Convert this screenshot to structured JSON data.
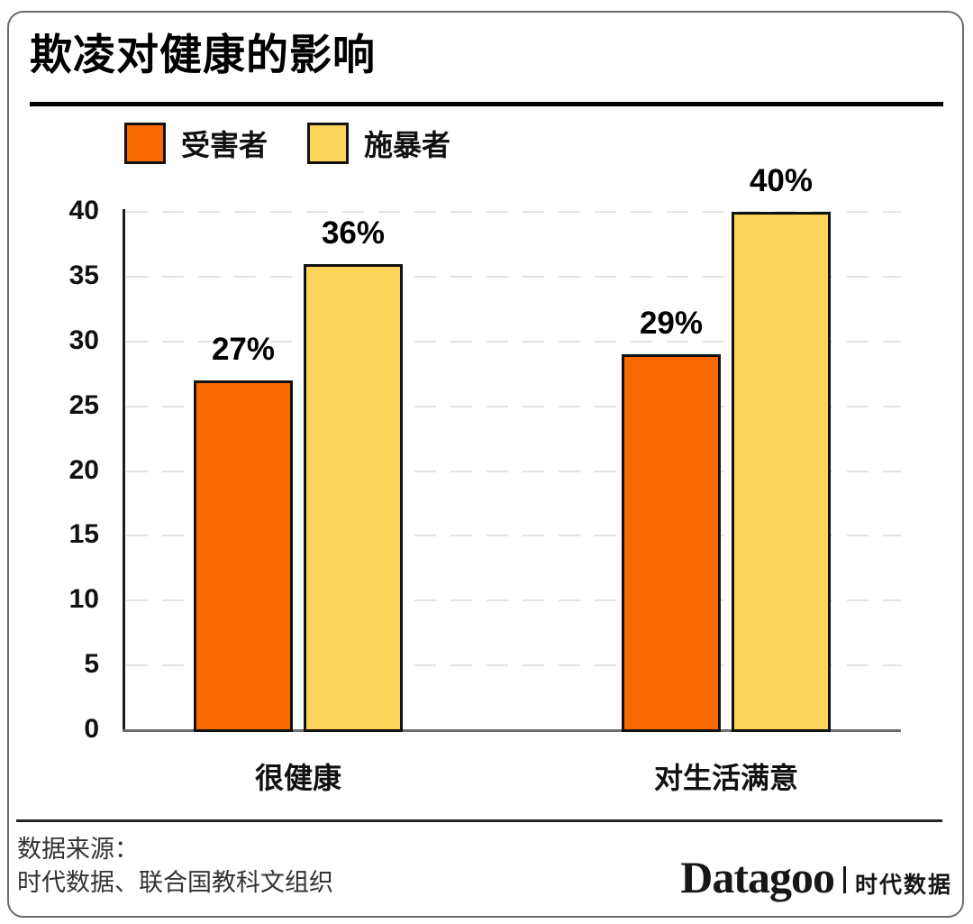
{
  "chart_data": {
    "type": "bar",
    "title": "欺凌对健康的影响",
    "categories": [
      "很健康",
      "对生活满意"
    ],
    "series": [
      {
        "name": "受害者",
        "color": "#F76900",
        "values": [
          27,
          29
        ],
        "labels": [
          "27%",
          "29%"
        ]
      },
      {
        "name": "施暴者",
        "color": "#FCD45C",
        "values": [
          36,
          40
        ],
        "labels": [
          "36%",
          "40%"
        ]
      }
    ],
    "ylim": [
      0,
      40
    ],
    "yticks": [
      0,
      5,
      10,
      15,
      20,
      25,
      30,
      35,
      40
    ],
    "grid": "dashed-horizontal",
    "legend_position": "top-left",
    "xlabel": "",
    "ylabel": ""
  },
  "footer": {
    "source_line1": "数据来源：",
    "source_line2": "时代数据、联合国教科文组织",
    "brand_name": "Datagoo",
    "brand_cn": "时代数据"
  },
  "colors": {
    "victim_orange": "#F76900",
    "bully_yellow": "#FCD45C",
    "bar_border": "#111111",
    "card_border": "#6b6b6b"
  }
}
